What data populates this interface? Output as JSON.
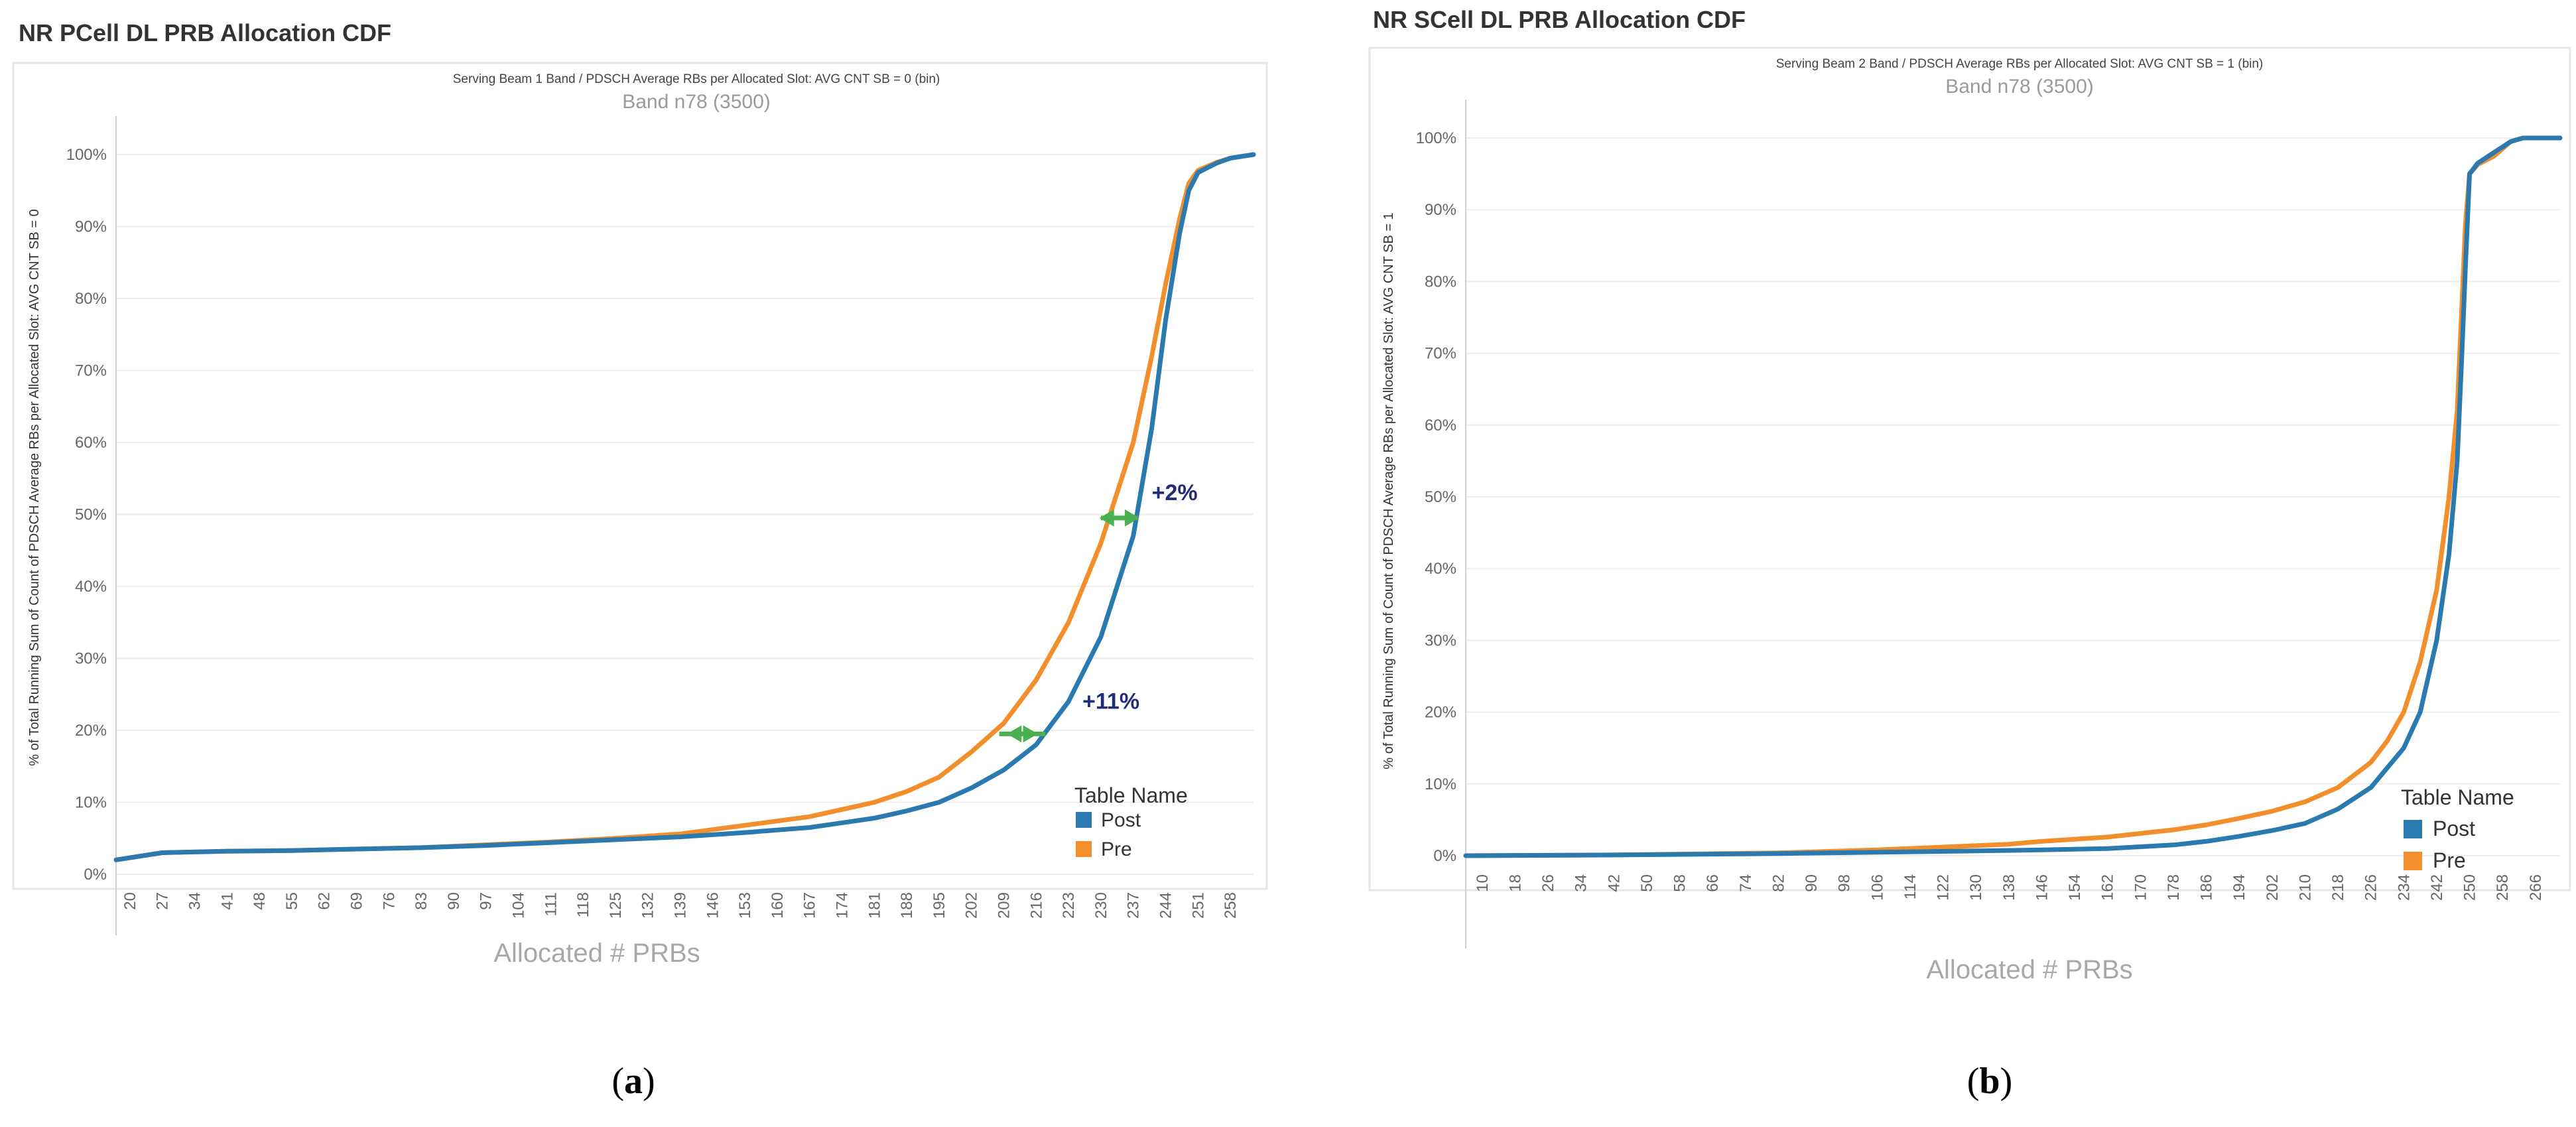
{
  "chart_data": [
    {
      "panel": "a",
      "type": "line",
      "title": "NR PCell DL PRB Allocation CDF",
      "subtitle": "Serving Beam 1 Band  /  PDSCH Average RBs per Allocated Slot: AVG CNT SB = 0 (bin)",
      "band_label": "Band n78 (3500)",
      "ylabel": "% of Total Running Sum of Count of PDSCH Average RBs per Allocated Slot: AVG CNT SB = 0",
      "xlabel": "Allocated # PRBs",
      "x_ticks": [
        "20",
        "27",
        "34",
        "41",
        "48",
        "55",
        "62",
        "69",
        "76",
        "83",
        "90",
        "97",
        "104",
        "111",
        "118",
        "125",
        "132",
        "139",
        "146",
        "153",
        "160",
        "167",
        "174",
        "181",
        "188",
        "195",
        "202",
        "209",
        "216",
        "223",
        "230",
        "237",
        "244",
        "251",
        "258"
      ],
      "y_ticks": [
        "0%",
        "10%",
        "20%",
        "30%",
        "40%",
        "50%",
        "60%",
        "70%",
        "80%",
        "90%",
        "100%"
      ],
      "xlim": [
        17,
        263
      ],
      "ylim": [
        0,
        100
      ],
      "legend_title": "Table Name",
      "series": [
        {
          "name": "Post",
          "color": "#2a7ab0",
          "points": [
            [
              17,
              2
            ],
            [
              27,
              3
            ],
            [
              41,
              3.2
            ],
            [
              55,
              3.3
            ],
            [
              69,
              3.5
            ],
            [
              83,
              3.7
            ],
            [
              97,
              4
            ],
            [
              111,
              4.4
            ],
            [
              125,
              4.8
            ],
            [
              139,
              5.2
            ],
            [
              153,
              5.8
            ],
            [
              167,
              6.5
            ],
            [
              181,
              7.8
            ],
            [
              188,
              8.8
            ],
            [
              195,
              10
            ],
            [
              202,
              12
            ],
            [
              209,
              14.5
            ],
            [
              216,
              18
            ],
            [
              223,
              24
            ],
            [
              230,
              33
            ],
            [
              237,
              47
            ],
            [
              241,
              62
            ],
            [
              244,
              77
            ],
            [
              247,
              89
            ],
            [
              249,
              95
            ],
            [
              251,
              97.5
            ],
            [
              255,
              98.8
            ],
            [
              258,
              99.5
            ],
            [
              263,
              100
            ]
          ]
        },
        {
          "name": "Pre",
          "color": "#f28e2b",
          "points": [
            [
              17,
              2
            ],
            [
              27,
              3
            ],
            [
              41,
              3.2
            ],
            [
              55,
              3.3
            ],
            [
              69,
              3.5
            ],
            [
              83,
              3.7
            ],
            [
              97,
              4.1
            ],
            [
              111,
              4.5
            ],
            [
              125,
              5
            ],
            [
              139,
              5.6
            ],
            [
              153,
              6.8
            ],
            [
              167,
              8
            ],
            [
              181,
              10
            ],
            [
              188,
              11.5
            ],
            [
              195,
              13.5
            ],
            [
              202,
              17
            ],
            [
              209,
              21
            ],
            [
              216,
              27
            ],
            [
              223,
              35
            ],
            [
              230,
              46
            ],
            [
              237,
              60
            ],
            [
              241,
              72
            ],
            [
              244,
              82
            ],
            [
              247,
              91
            ],
            [
              249,
              96
            ],
            [
              251,
              97.8
            ],
            [
              255,
              98.9
            ],
            [
              258,
              99.5
            ],
            [
              263,
              100
            ]
          ]
        }
      ],
      "annotations": [
        {
          "text": "+2%",
          "x": 241,
          "y": 52
        },
        {
          "text": "+11%",
          "x": 226,
          "y": 23
        }
      ],
      "arrows": [
        {
          "x": 230,
          "y": 49.5,
          "direction": "right"
        },
        {
          "x": 238,
          "y": 49.5,
          "direction": "left"
        },
        {
          "x": 208,
          "y": 19.5,
          "direction": "right"
        },
        {
          "x": 218,
          "y": 19.5,
          "direction": "left"
        }
      ],
      "caption": "(a)"
    },
    {
      "panel": "b",
      "type": "line",
      "title": "NR SCell DL PRB Allocation CDF",
      "subtitle": "Serving Beam 2 Band  /  PDSCH Average RBs per Allocated Slot: AVG CNT SB = 1 (bin)",
      "band_label": "Band n78 (3500)",
      "ylabel": "% of Total Running Sum of Count of PDSCH Average RBs per Allocated Slot: AVG CNT SB = 1",
      "xlabel": "Allocated # PRBs",
      "x_ticks": [
        "10",
        "18",
        "26",
        "34",
        "42",
        "50",
        "58",
        "66",
        "74",
        "82",
        "90",
        "98",
        "106",
        "114",
        "122",
        "130",
        "138",
        "146",
        "154",
        "162",
        "170",
        "178",
        "186",
        "194",
        "202",
        "210",
        "218",
        "226",
        "234",
        "242",
        "250",
        "258",
        "266"
      ],
      "y_ticks": [
        "0%",
        "10%",
        "20%",
        "30%",
        "40%",
        "50%",
        "60%",
        "70%",
        "80%",
        "90%",
        "100%"
      ],
      "xlim": [
        6,
        272
      ],
      "ylim": [
        0,
        100
      ],
      "legend_title": "Table Name",
      "series": [
        {
          "name": "Post",
          "color": "#2a7ab0",
          "points": [
            [
              6,
              0
            ],
            [
              42,
              0.1
            ],
            [
              82,
              0.3
            ],
            [
              122,
              0.6
            ],
            [
              146,
              0.8
            ],
            [
              162,
              1
            ],
            [
              178,
              1.5
            ],
            [
              186,
              2
            ],
            [
              194,
              2.7
            ],
            [
              202,
              3.5
            ],
            [
              210,
              4.5
            ],
            [
              218,
              6.5
            ],
            [
              226,
              9.5
            ],
            [
              234,
              15
            ],
            [
              238,
              20
            ],
            [
              242,
              30
            ],
            [
              245,
              42
            ],
            [
              247,
              55
            ],
            [
              248,
              68
            ],
            [
              249,
              82
            ],
            [
              250,
              95
            ],
            [
              252,
              96.5
            ],
            [
              256,
              98
            ],
            [
              260,
              99.5
            ],
            [
              263,
              100
            ],
            [
              272,
              100
            ]
          ]
        },
        {
          "name": "Pre",
          "color": "#f28e2b",
          "points": [
            [
              6,
              0
            ],
            [
              42,
              0.1
            ],
            [
              82,
              0.4
            ],
            [
              106,
              0.8
            ],
            [
              122,
              1.2
            ],
            [
              138,
              1.6
            ],
            [
              146,
              2
            ],
            [
              162,
              2.6
            ],
            [
              178,
              3.6
            ],
            [
              186,
              4.3
            ],
            [
              194,
              5.2
            ],
            [
              202,
              6.2
            ],
            [
              210,
              7.5
            ],
            [
              218,
              9.5
            ],
            [
              226,
              13
            ],
            [
              230,
              16
            ],
            [
              234,
              20
            ],
            [
              238,
              27
            ],
            [
              242,
              37
            ],
            [
              245,
              50
            ],
            [
              247,
              62
            ],
            [
              248,
              75
            ],
            [
              249,
              88
            ],
            [
              250,
              95
            ],
            [
              252,
              96.3
            ],
            [
              256,
              97.5
            ],
            [
              260,
              99.5
            ],
            [
              263,
              100
            ],
            [
              272,
              100
            ]
          ]
        }
      ],
      "caption": "(b)"
    }
  ]
}
